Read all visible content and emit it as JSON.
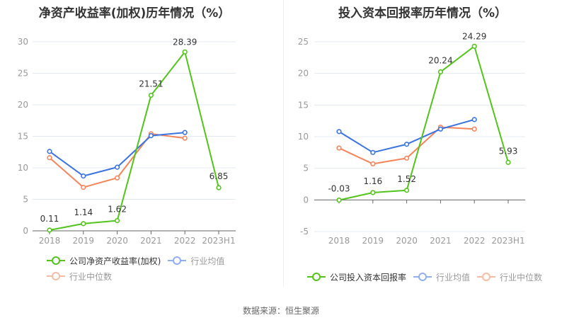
{
  "colors": {
    "company": "#52c41a",
    "industry_avg": "#3b73e0",
    "industry_median": "#f5845a",
    "legend_avg": "#91aef0",
    "legend_median": "#f8bca3",
    "grid": "#e3e8f0",
    "axis": "#666666"
  },
  "footer": {
    "source": "数据来源：恒生聚源"
  },
  "chart_data": [
    {
      "type": "line",
      "title": "净资产收益率(加权)历年情况（%）",
      "categories": [
        "2018",
        "2019",
        "2020",
        "2021",
        "2022",
        "2023H1"
      ],
      "ylim": [
        0,
        30
      ],
      "yticks": [
        "0",
        "5",
        "10",
        "15",
        "20",
        "25",
        "30"
      ],
      "ytick_values": [
        0,
        5,
        10,
        15,
        20,
        25,
        30
      ],
      "grid": true,
      "legend_position": "bottom-left",
      "series": [
        {
          "name": "公司净资产收益率(加权)",
          "key": "company",
          "values": [
            0.11,
            1.14,
            1.62,
            21.51,
            28.39,
            6.85
          ],
          "labels": [
            "0.11",
            "1.14",
            "1.62",
            "21.51",
            "28.39",
            "6.85"
          ]
        },
        {
          "name": "行业均值",
          "key": "industry_avg",
          "values": [
            12.6,
            8.7,
            10.1,
            15.1,
            15.6,
            null
          ]
        },
        {
          "name": "行业中位数",
          "key": "industry_median",
          "values": [
            11.6,
            6.9,
            8.4,
            15.4,
            14.7,
            null
          ]
        }
      ]
    },
    {
      "type": "line",
      "title": "投入资本回报率历年情况（%）",
      "categories": [
        "2018",
        "2019",
        "2020",
        "2021",
        "2022",
        "2023H1"
      ],
      "ylim": [
        -5,
        25
      ],
      "yticks": [
        "-5",
        "0",
        "5",
        "10",
        "15",
        "20",
        "25"
      ],
      "ytick_values": [
        -5,
        0,
        5,
        10,
        15,
        20,
        25
      ],
      "grid": true,
      "legend_position": "bottom",
      "series": [
        {
          "name": "公司投入资本回报率",
          "key": "company",
          "values": [
            -0.03,
            1.16,
            1.52,
            20.24,
            24.29,
            5.93
          ],
          "labels": [
            "-0.03",
            "1.16",
            "1.52",
            "20.24",
            "24.29",
            "5.93"
          ]
        },
        {
          "name": "行业均值",
          "key": "industry_avg",
          "values": [
            10.8,
            7.5,
            8.8,
            11.2,
            12.7,
            null
          ]
        },
        {
          "name": "行业中位数",
          "key": "industry_median",
          "values": [
            8.2,
            5.7,
            6.6,
            11.5,
            11.2,
            null
          ]
        }
      ]
    }
  ]
}
